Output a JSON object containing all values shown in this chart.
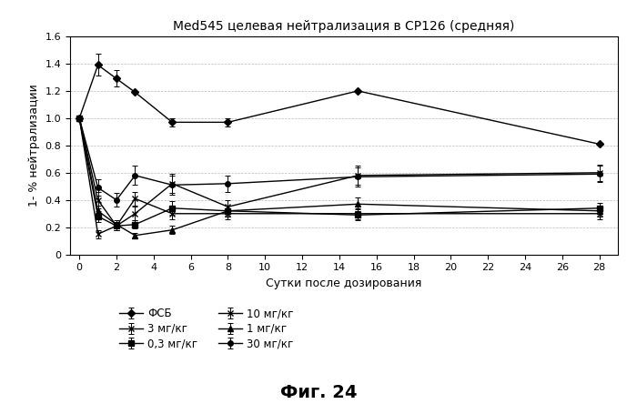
{
  "title": "Med545 целевая нейтрализация в CP126 (средняя)",
  "xlabel": "Сутки после дозирования",
  "ylabel": "1- % нейтрализации",
  "figcaption": "Фиг. 24",
  "xlim": [
    -0.5,
    29
  ],
  "ylim": [
    0,
    1.6
  ],
  "xticks": [
    0,
    2,
    4,
    6,
    8,
    10,
    12,
    14,
    16,
    18,
    20,
    22,
    24,
    26,
    28
  ],
  "yticks": [
    0,
    0.2,
    0.4,
    0.6,
    0.8,
    1.0,
    1.2,
    1.4,
    1.6
  ],
  "series": [
    {
      "label": "ФСБ",
      "x": [
        0,
        1,
        2,
        3,
        5,
        8,
        15,
        28
      ],
      "y": [
        1.0,
        1.39,
        1.29,
        1.19,
        0.97,
        0.97,
        1.2,
        0.81
      ],
      "yerr": [
        0.0,
        0.08,
        0.06,
        0.0,
        0.03,
        0.03,
        0.0,
        0.0
      ],
      "marker": "D",
      "markersize": 4,
      "linestyle": "-",
      "linewidth": 1.0
    },
    {
      "label": "0,3 мг/кг",
      "x": [
        0,
        1,
        2,
        3,
        5,
        8,
        15,
        28
      ],
      "y": [
        1.0,
        0.28,
        0.21,
        0.22,
        0.34,
        0.32,
        0.29,
        0.34
      ],
      "yerr": [
        0.0,
        0.04,
        0.03,
        0.03,
        0.05,
        0.04,
        0.04,
        0.04
      ],
      "marker": "s",
      "markersize": 4,
      "linestyle": "-",
      "linewidth": 1.0
    },
    {
      "label": "1 мг/кг",
      "x": [
        0,
        1,
        2,
        3,
        5,
        8,
        15,
        28
      ],
      "y": [
        1.0,
        0.32,
        0.22,
        0.14,
        0.18,
        0.32,
        0.37,
        0.32
      ],
      "yerr": [
        0.0,
        0.04,
        0.03,
        0.02,
        0.03,
        0.04,
        0.05,
        0.04
      ],
      "marker": "^",
      "markersize": 4,
      "linestyle": "-",
      "linewidth": 1.0
    },
    {
      "label": "3 мг/кг",
      "x": [
        0,
        1,
        2,
        3,
        5,
        8,
        15,
        28
      ],
      "y": [
        1.0,
        0.15,
        0.21,
        0.41,
        0.3,
        0.3,
        0.3,
        0.3
      ],
      "yerr": [
        0.0,
        0.03,
        0.03,
        0.05,
        0.04,
        0.04,
        0.04,
        0.04
      ],
      "marker": "x",
      "markersize": 5,
      "linestyle": "-",
      "linewidth": 1.0
    },
    {
      "label": "10 мг/кг",
      "x": [
        0,
        1,
        2,
        3,
        5,
        8,
        15,
        28
      ],
      "y": [
        1.0,
        0.4,
        0.21,
        0.3,
        0.52,
        0.35,
        0.58,
        0.6
      ],
      "yerr": [
        0.0,
        0.06,
        0.03,
        0.05,
        0.07,
        0.05,
        0.07,
        0.06
      ],
      "marker": "x",
      "markersize": 5,
      "linestyle": "-",
      "linewidth": 1.0
    },
    {
      "label": "30 мг/кг",
      "x": [
        0,
        1,
        2,
        3,
        5,
        8,
        15,
        28
      ],
      "y": [
        1.0,
        0.49,
        0.4,
        0.58,
        0.51,
        0.52,
        0.57,
        0.59
      ],
      "yerr": [
        0.0,
        0.06,
        0.05,
        0.07,
        0.07,
        0.06,
        0.07,
        0.06
      ],
      "marker": "o",
      "markersize": 4,
      "linestyle": "-",
      "linewidth": 1.0
    }
  ],
  "background_color": "#ffffff",
  "grid_color": "#bbbbbb"
}
